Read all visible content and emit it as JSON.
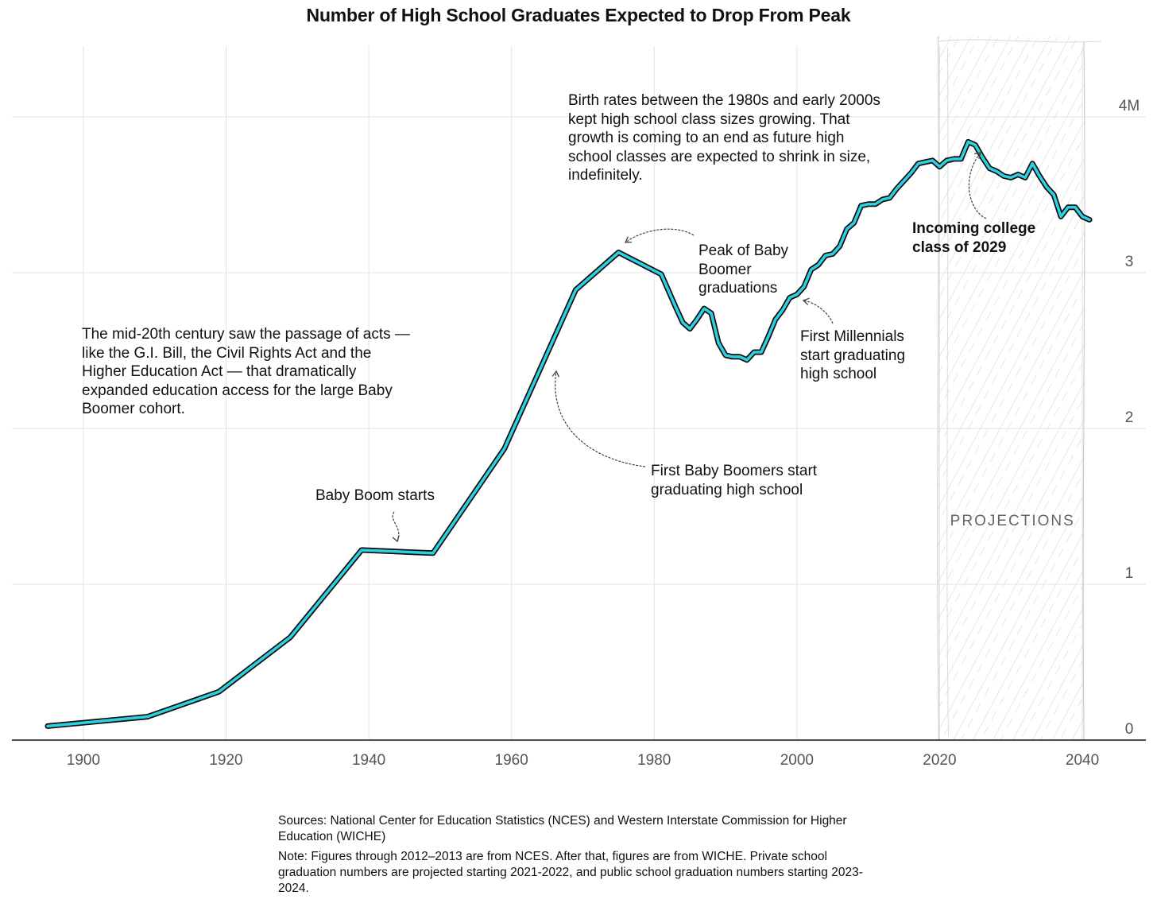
{
  "chart_data": {
    "type": "line",
    "title": "Number of High School Graduates Expected to Drop From Peak",
    "xlabel": "",
    "ylabel": "",
    "xlim": [
      1895,
      2042
    ],
    "ylim": [
      0,
      4
    ],
    "x_ticks": [
      "1900",
      "1920",
      "1940",
      "1960",
      "1980",
      "2000",
      "2020",
      "2040"
    ],
    "y_ticks": [
      "0",
      "1",
      "2",
      "3",
      "4M"
    ],
    "y_tick_values": [
      0,
      1,
      2,
      3,
      4
    ],
    "grid": true,
    "projection_start": 2020,
    "projection_label": "PROJECTIONS",
    "series": [
      {
        "color": "#2dd0e0",
        "x": [
          1895,
          1909,
          1919,
          1929,
          1939,
          1949,
          1959,
          1969,
          1975,
          1981,
          1983,
          1984,
          1985,
          1986,
          1987,
          1988,
          1989,
          1990,
          1991,
          1992,
          1993,
          1994,
          1995,
          1996,
          1997,
          1998,
          1999,
          2000,
          2001,
          2002,
          2003,
          2004,
          2005,
          2006,
          2007,
          2008,
          2009,
          2010,
          2011,
          2012,
          2013,
          2014,
          2015,
          2016,
          2017,
          2018,
          2019,
          2020,
          2021,
          2022,
          2023,
          2024,
          2025,
          2026,
          2027,
          2028,
          2029,
          2030,
          2031,
          2032,
          2033,
          2034,
          2035,
          2036,
          2037,
          2038,
          2039,
          2040,
          2041
        ],
        "values": [
          0.09,
          0.15,
          0.31,
          0.66,
          1.22,
          1.2,
          1.87,
          2.89,
          3.13,
          2.99,
          2.78,
          2.68,
          2.64,
          2.7,
          2.77,
          2.74,
          2.55,
          2.47,
          2.46,
          2.46,
          2.44,
          2.49,
          2.49,
          2.59,
          2.7,
          2.76,
          2.84,
          2.86,
          2.91,
          3.02,
          3.05,
          3.11,
          3.12,
          3.17,
          3.28,
          3.32,
          3.43,
          3.44,
          3.44,
          3.47,
          3.48,
          3.54,
          3.59,
          3.64,
          3.7,
          3.71,
          3.72,
          3.68,
          3.72,
          3.73,
          3.73,
          3.84,
          3.82,
          3.74,
          3.67,
          3.65,
          3.62,
          3.61,
          3.63,
          3.61,
          3.7,
          3.62,
          3.55,
          3.5,
          3.36,
          3.42,
          3.42,
          3.36,
          3.34
        ]
      }
    ]
  },
  "annotations": {
    "mid_century": "The mid-20th century saw the passage of acts — like the G.I. Bill, the Civil Rights Act and the Higher Education Act — that dramatically expanded education access for the large Baby Boomer cohort.",
    "baby_boom": "Baby Boom starts",
    "first_boomers": "First Baby Boomers start graduating high school",
    "peak_boomer": "Peak of Baby Boomer graduations",
    "millennials": "First Millennials start graduating high school",
    "birth_rates": "Birth rates between the 1980s and early 2000s kept high school class sizes growing. That growth is coming to an end as future high school classes are expected to shrink in size, indefinitely.",
    "class_2029": "Incoming college class of 2029"
  },
  "footer": {
    "sources": "Sources: National Center for Education Statistics (NCES) and Western Interstate Commission for Higher Education (WICHE)",
    "note": "Note: Figures through 2012–2013 are from NCES. After that, figures are from WICHE. Private school graduation numbers are projected starting 2021-2022, and public school graduation numbers starting 2023-2024."
  }
}
